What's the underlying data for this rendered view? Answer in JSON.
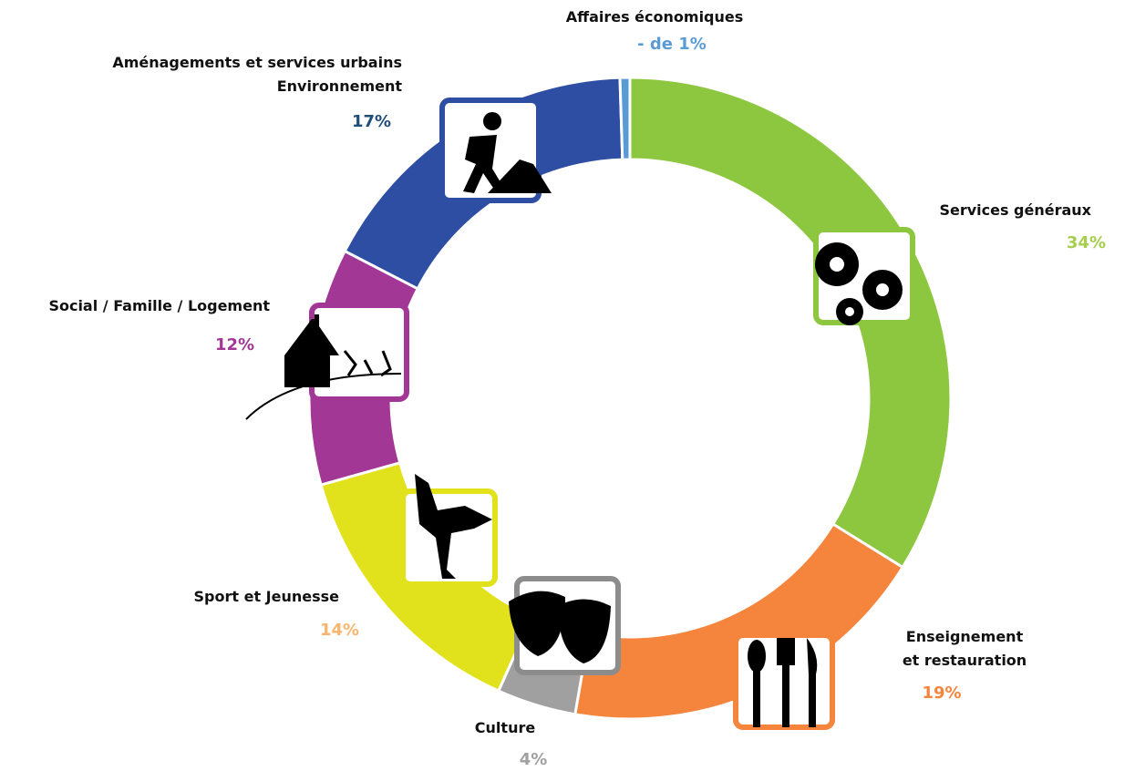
{
  "chart_data": {
    "type": "donut",
    "categories": [
      "Services généraux",
      "Enseignement\net restauration",
      "Culture",
      "Sport et Jeunesse",
      "Social / Famille / Logement",
      "Aménagements et services urbains\nEnvironnement",
      "Affaires économiques"
    ],
    "values": [
      34,
      19,
      4,
      14,
      12,
      17,
      0.5
    ],
    "value_labels": [
      "34%",
      "19%",
      "4%",
      "14%",
      "12%",
      "17%",
      "- de 1%"
    ],
    "colors": [
      "#8dc63f",
      "#f5843c",
      "#a0a0a0",
      "#e1e21b",
      "#a23795",
      "#2e4ea3",
      "#5b9bd5"
    ],
    "label_colors": [
      "#a5cf4c",
      "#f5843c",
      "#a0a0a0",
      "#fbb46b",
      "#a23795",
      "#1f4e79",
      "#5b9bd5"
    ]
  }
}
